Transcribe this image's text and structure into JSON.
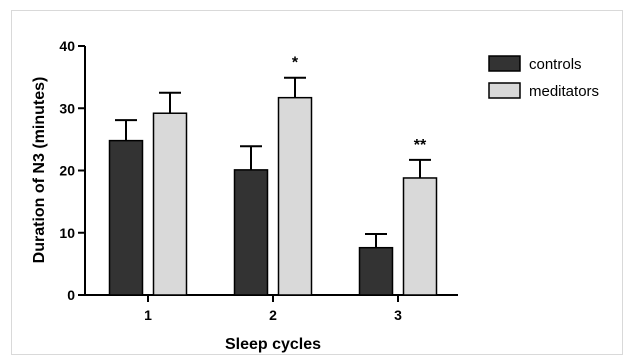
{
  "chart_data": {
    "type": "bar",
    "xlabel": "Sleep cycles",
    "ylabel": "Duration of N3 (minutes)",
    "categories": [
      "1",
      "2",
      "3"
    ],
    "ylim": [
      0,
      40
    ],
    "yticks": [
      "0",
      "10",
      "20",
      "30",
      "40"
    ],
    "grid": false,
    "legend_position": "top-right",
    "series": [
      {
        "name": "controls",
        "color": "#333333",
        "values": [
          24.8,
          20.1,
          7.6
        ],
        "error": [
          3.3,
          3.8,
          2.2
        ]
      },
      {
        "name": "meditators",
        "color": "#d9d9d9",
        "values": [
          29.2,
          31.7,
          18.8
        ],
        "error": [
          3.3,
          3.2,
          2.9
        ]
      }
    ],
    "annotations": [
      "",
      "*",
      "**"
    ]
  }
}
